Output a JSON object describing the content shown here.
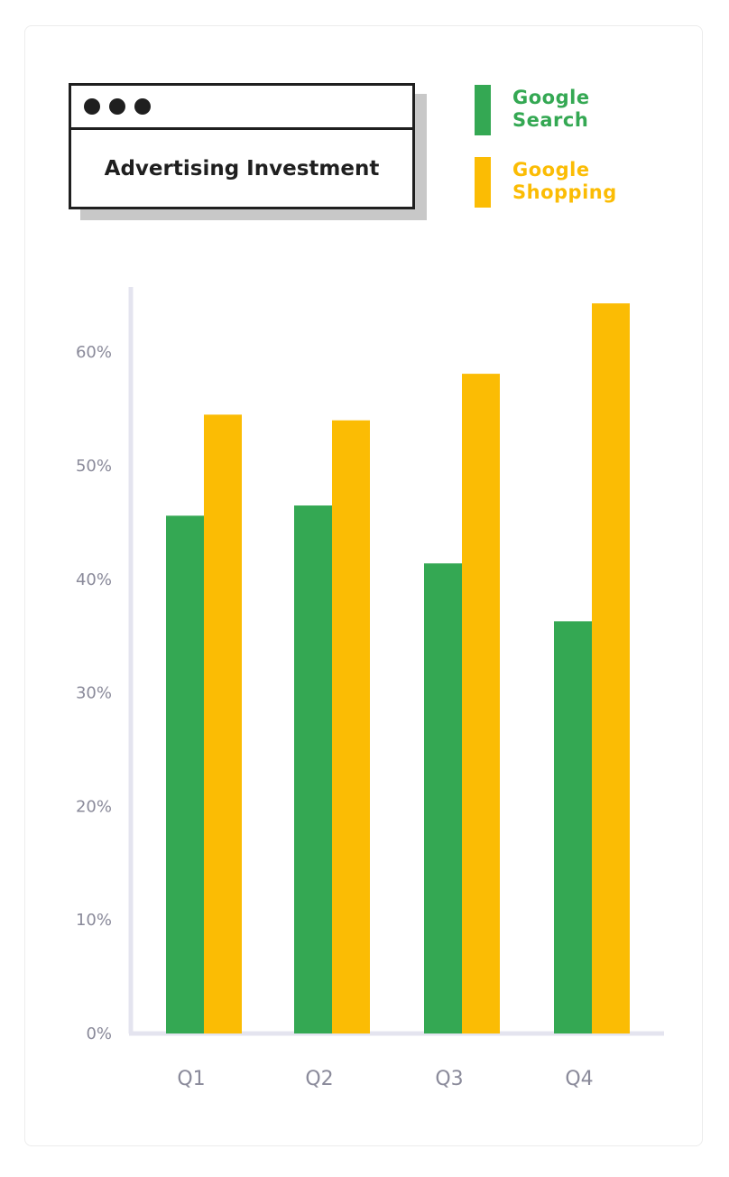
{
  "chart_data": {
    "type": "bar",
    "title": "Advertising Investment",
    "categories": [
      "Q1",
      "Q2",
      "Q3",
      "Q4"
    ],
    "series": [
      {
        "name": "Google Search",
        "name_lines": [
          "Google",
          "Search"
        ],
        "color": "#34a853",
        "values": [
          45.6,
          46.5,
          41.4,
          36.3
        ]
      },
      {
        "name": "Google Shopping",
        "name_lines": [
          "Google",
          "Shopping"
        ],
        "color": "#fbbc04",
        "values": [
          54.5,
          54.0,
          58.1,
          64.3
        ]
      }
    ],
    "y_ticks": [
      0,
      10,
      20,
      30,
      40,
      50,
      60
    ],
    "y_tick_labels": [
      "0%",
      "10%",
      "20%",
      "30%",
      "40%",
      "50%",
      "60%"
    ],
    "ylim": [
      0,
      65
    ],
    "xlabel": "",
    "ylabel": "",
    "grid": false,
    "legend_position": "top-right"
  }
}
